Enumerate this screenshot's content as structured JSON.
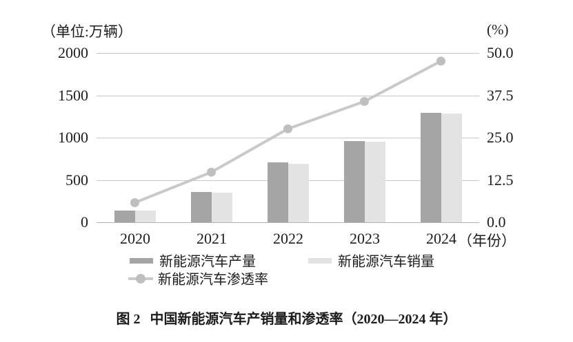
{
  "caption": {
    "label": "图 2",
    "title": "中国新能源汽车产销量和渗透率（2020—2024 年）"
  },
  "chart_data": {
    "type": "bar-line-combo",
    "title": "图 2 中国新能源汽车产销量和渗透率（2020—2024 年）",
    "categories": [
      "2020",
      "2021",
      "2022",
      "2023",
      "2024"
    ],
    "series": [
      {
        "name": "新能源汽车产量",
        "type": "bar",
        "axis": "left",
        "color": "#a5a5a5",
        "values": [
          136.6,
          354.5,
          705.8,
          958.7,
          1288.8
        ]
      },
      {
        "name": "新能源汽车销量",
        "type": "bar",
        "axis": "left",
        "color": "#e3e3e3",
        "values": [
          136.7,
          352.1,
          688.7,
          949.5,
          1286.6
        ]
      },
      {
        "name": "新能源汽车渗透率",
        "type": "line",
        "axis": "right",
        "color": "#c9c9c9",
        "marker_color": "#bfbfbf",
        "values": [
          5.8,
          14.8,
          27.6,
          35.7,
          47.6
        ]
      }
    ],
    "left_axis": {
      "unit_label": "（单位:万辆）",
      "ticks": [
        "2000",
        "1500",
        "1000",
        "500",
        "0"
      ],
      "min": 0,
      "max": 2000
    },
    "right_axis": {
      "unit_label": "(%)",
      "ticks": [
        "50.0",
        "37.5",
        "25.0",
        "12.5",
        "0.0"
      ],
      "min": 0,
      "max": 50
    },
    "x_axis": {
      "suffix_label": "（年份）"
    },
    "grid": true,
    "legend_position": "bottom",
    "colors": {
      "gridline": "#c6c6c6",
      "axis_line": "#b2b2b2",
      "text": "#1c1c1c",
      "background": "#ffffff"
    }
  }
}
